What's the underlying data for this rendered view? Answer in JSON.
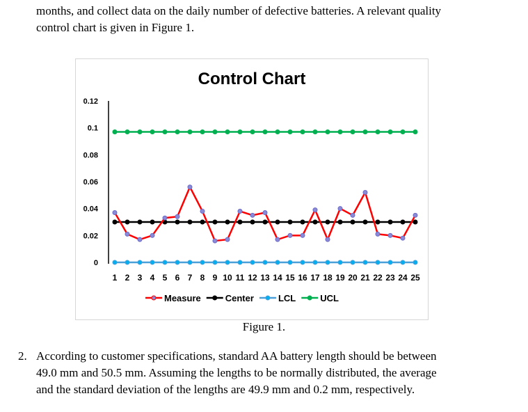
{
  "intro_lines": [
    "months, and collect data on the daily number of defective batteries. A relevant quality",
    "control chart is given in Figure 1."
  ],
  "figure_caption": "Figure 1.",
  "question": {
    "number": "2.",
    "lines": [
      "According to customer specifications, standard AA battery length should be between",
      "49.0 mm and 50.5 mm. Assuming the lengths to be normally distributed, the average",
      "and the standard deviation of the lengths are 49.9 mm and 0.2 mm, respectively."
    ]
  },
  "chart_data": {
    "type": "line",
    "title": "Control Chart",
    "xlabel": "",
    "ylabel": "",
    "categories": [
      "1",
      "2",
      "3",
      "4",
      "5",
      "6",
      "7",
      "8",
      "9",
      "10",
      "11",
      "12",
      "13",
      "14",
      "15",
      "16",
      "17",
      "18",
      "19",
      "20",
      "21",
      "22",
      "23",
      "24",
      "25"
    ],
    "y_ticks": [
      "0",
      "0.02",
      "0.04",
      "0.06",
      "0.08",
      "0.1",
      "0.12"
    ],
    "ylim": [
      0,
      0.12
    ],
    "grid": false,
    "legend_position": "bottom",
    "series": [
      {
        "name": "Measure",
        "color": "#ff0000",
        "marker_color": "#8a8ad6",
        "values": [
          0.037,
          0.021,
          0.017,
          0.02,
          0.033,
          0.034,
          0.056,
          0.038,
          0.016,
          0.017,
          0.038,
          0.035,
          0.037,
          0.017,
          0.02,
          0.02,
          0.039,
          0.017,
          0.04,
          0.035,
          0.052,
          0.021,
          0.02,
          0.018,
          0.035
        ]
      },
      {
        "name": "Center",
        "color": "#000000",
        "marker_color": "#000000",
        "values": [
          0.03,
          0.03,
          0.03,
          0.03,
          0.03,
          0.03,
          0.03,
          0.03,
          0.03,
          0.03,
          0.03,
          0.03,
          0.03,
          0.03,
          0.03,
          0.03,
          0.03,
          0.03,
          0.03,
          0.03,
          0.03,
          0.03,
          0.03,
          0.03,
          0.03
        ]
      },
      {
        "name": "LCL",
        "color": "#4a9fd8",
        "marker_color": "#00b0f0",
        "values": [
          0,
          0,
          0,
          0,
          0,
          0,
          0,
          0,
          0,
          0,
          0,
          0,
          0,
          0,
          0,
          0,
          0,
          0,
          0,
          0,
          0,
          0,
          0,
          0,
          0
        ]
      },
      {
        "name": "UCL",
        "color": "#00b050",
        "marker_color": "#00b050",
        "values": [
          0.097,
          0.097,
          0.097,
          0.097,
          0.097,
          0.097,
          0.097,
          0.097,
          0.097,
          0.097,
          0.097,
          0.097,
          0.097,
          0.097,
          0.097,
          0.097,
          0.097,
          0.097,
          0.097,
          0.097,
          0.097,
          0.097,
          0.097,
          0.097,
          0.097
        ]
      }
    ]
  }
}
